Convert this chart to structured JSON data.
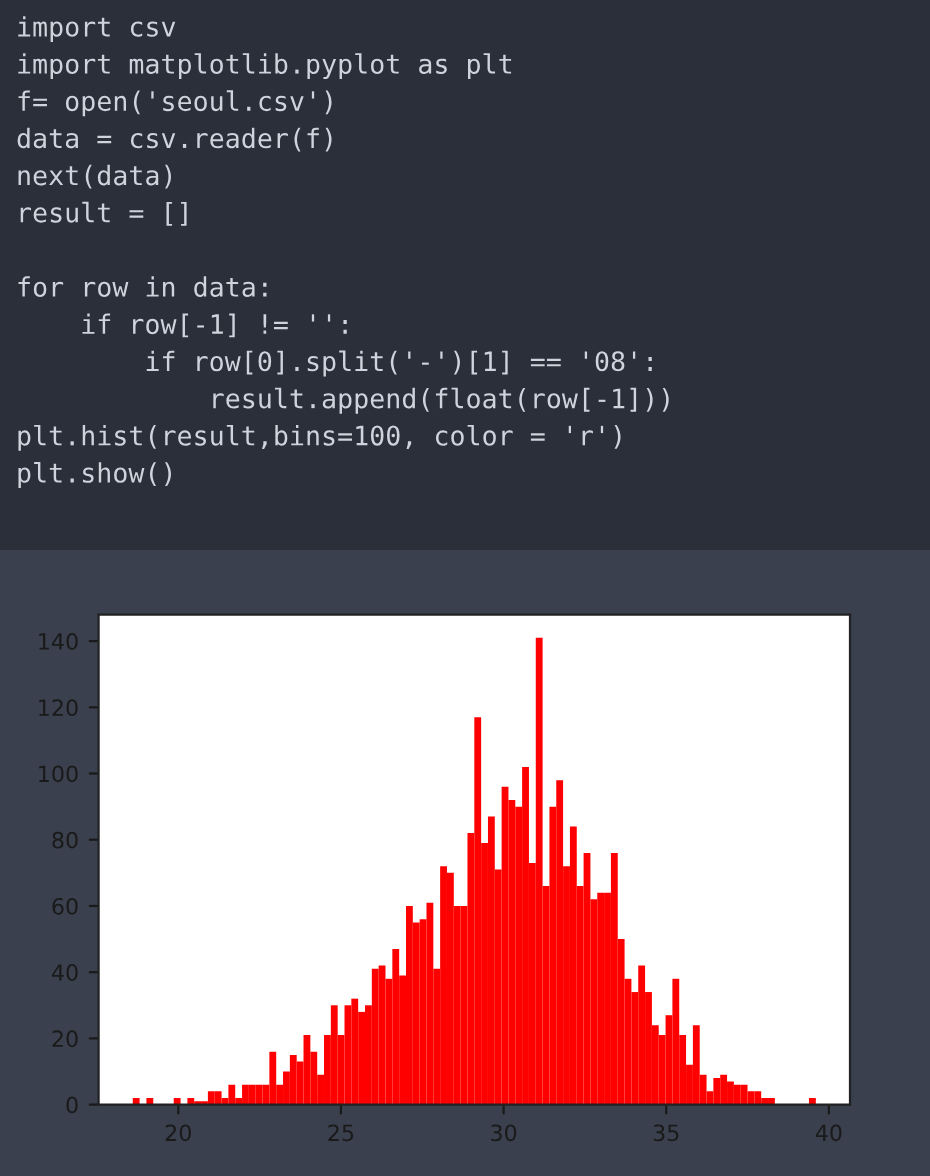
{
  "chart_data": {
    "type": "histogram",
    "annotations": [
      "import csv\nimport matplotlib.pyplot as plt\nf= open('seoul.csv')\ndata = csv.reader(f)\nnext(data)\nresult = []\n\nfor row in data:\n    if row[-1] != '':\n        if row[0].split('-')[1] == '08':\n            result.append(float(row[-1]))\nplt.hist(result,bins=100, color = 'r')\nplt.show()"
    ],
    "bins": [
      18.6,
      18.81,
      19.02,
      19.23,
      19.44,
      19.65,
      19.86,
      20.07,
      20.28,
      20.49,
      20.7,
      20.91,
      21.12,
      21.33,
      21.54,
      21.75,
      21.96,
      22.17,
      22.38,
      22.59,
      22.8,
      23.01,
      23.22,
      23.43,
      23.64,
      23.85,
      24.06,
      24.27,
      24.48,
      24.69,
      24.9,
      25.11,
      25.32,
      25.53,
      25.74,
      25.95,
      26.16,
      26.37,
      26.58,
      26.79,
      27.0,
      27.21,
      27.42,
      27.63,
      27.84,
      28.05,
      28.26,
      28.47,
      28.68,
      28.89,
      29.1,
      29.31,
      29.52,
      29.73,
      29.94,
      30.15,
      30.36,
      30.57,
      30.78,
      30.99,
      31.2,
      31.41,
      31.62,
      31.83,
      32.04,
      32.25,
      32.46,
      32.67,
      32.88,
      33.09,
      33.3,
      33.51,
      33.72,
      33.93,
      34.14,
      34.35,
      34.56,
      34.77,
      34.98,
      35.19,
      35.4,
      35.61,
      35.82,
      36.03,
      36.24,
      36.45,
      36.66,
      36.87,
      37.08,
      37.29,
      37.5,
      37.71,
      37.92,
      38.13,
      38.34,
      38.55,
      38.76,
      38.97,
      39.18,
      39.39,
      39.6
    ],
    "values": [
      2,
      0,
      2,
      0,
      0,
      0,
      2,
      0,
      2,
      1,
      1,
      4,
      4,
      2,
      6,
      2,
      6,
      6,
      6,
      6,
      16,
      6,
      10,
      15,
      13,
      21,
      16,
      9,
      21,
      30,
      21,
      30,
      32,
      28,
      30,
      41,
      42,
      38,
      47,
      39,
      60,
      55,
      56,
      61,
      41,
      72,
      70,
      60,
      60,
      82,
      117,
      79,
      87,
      71,
      96,
      92,
      90,
      102,
      73,
      141,
      66,
      90,
      98,
      72,
      84,
      66,
      76,
      62,
      64,
      64,
      76,
      50,
      38,
      34,
      42,
      34,
      24,
      21,
      27,
      38,
      21,
      12,
      24,
      9,
      4,
      8,
      9,
      7,
      6,
      6,
      4,
      4,
      2,
      2,
      0,
      0,
      0,
      0,
      0,
      2
    ],
    "color": "#ff0000",
    "xlim": [
      17.55,
      40.65
    ],
    "xticks": [
      20,
      25,
      30,
      35,
      40
    ],
    "ylim": [
      0,
      148
    ],
    "yticks": [
      0,
      20,
      40,
      60,
      80,
      100,
      120,
      140
    ],
    "grid": false
  }
}
